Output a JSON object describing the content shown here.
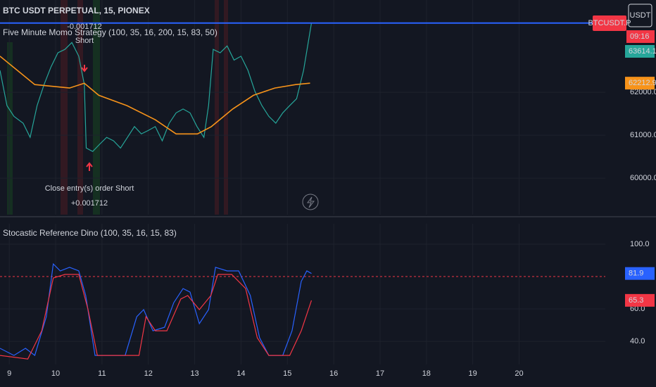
{
  "ui": {
    "symbol_badge": "BTCUSDT.P",
    "currency": "USDT",
    "countdown": "09:16"
  },
  "chart_data": [
    {
      "type": "line",
      "title": "BTC USDT PERPETUAL, 15, PIONEX",
      "subtitle": "Five Minute Momo Strategy (100, 35, 16, 200, 15, 83, 50)",
      "annotations": [
        "-0.001712",
        "Short",
        "Close entry(s) order Short",
        "+0.001712"
      ],
      "xlim": [
        8.8,
        21.86
      ],
      "xticks": [
        9,
        10,
        11,
        12,
        13,
        14,
        15,
        16,
        17,
        18,
        19,
        20
      ],
      "ylim": [
        59150,
        64150
      ],
      "yticks": [
        {
          "value": 60000,
          "label": "60000.0"
        },
        {
          "value": 61000,
          "label": "61000.0"
        },
        {
          "value": 62000,
          "label": "62000.0"
        }
      ],
      "grid": true,
      "series": [
        {
          "color": "#26a69a",
          "x": [
            8.8,
            8.95,
            9.1,
            9.3,
            9.45,
            9.6,
            9.75,
            9.9,
            10.05,
            10.2,
            10.35,
            10.5,
            10.62,
            10.66,
            10.8,
            10.95,
            11.1,
            11.25,
            11.4,
            11.55,
            11.7,
            11.85,
            12.0,
            12.15,
            12.3,
            12.45,
            12.6,
            12.75,
            12.9,
            13.05,
            13.2,
            13.3,
            13.4,
            13.55,
            13.7,
            13.85,
            14.0,
            14.15,
            14.3,
            14.45,
            14.6,
            14.75,
            14.9,
            15.05,
            15.2,
            15.35,
            15.45,
            15.52
          ],
          "values": [
            62510,
            61690,
            61440,
            61280,
            60950,
            61690,
            62180,
            62590,
            62920,
            63000,
            63160,
            62840,
            62180,
            60700,
            60620,
            60790,
            60950,
            60870,
            60700,
            60950,
            61200,
            61030,
            61110,
            61200,
            60870,
            61280,
            61520,
            61610,
            61520,
            61200,
            60950,
            61690,
            63000,
            62920,
            63080,
            62750,
            62840,
            62510,
            62020,
            61690,
            61440,
            61280,
            61520,
            61690,
            61850,
            62510,
            63160,
            63614.1
          ]
        },
        {
          "color": "#f7931a",
          "x": [
            8.8,
            9.55,
            10.3,
            10.62,
            10.93,
            11.54,
            12.15,
            12.6,
            13.06,
            13.36,
            13.82,
            14.27,
            14.73,
            15.18,
            15.49
          ],
          "values": [
            62840,
            62180,
            62100,
            62210,
            61930,
            61690,
            61360,
            61030,
            61030,
            61200,
            61610,
            61930,
            62100,
            62180,
            62212.9
          ]
        }
      ]
    },
    {
      "type": "line",
      "title": "Stocastic Reference Dino (100, 35, 16, 15, 83)",
      "xlim": [
        8.8,
        21.86
      ],
      "xticks": [
        9,
        10,
        11,
        12,
        13,
        14,
        15,
        16,
        17,
        18,
        19,
        20
      ],
      "ylim": [
        25.7,
        112.6
      ],
      "yticks": [
        {
          "value": 40,
          "label": "40.0"
        },
        {
          "value": 60,
          "label": "60.0"
        },
        {
          "value": 100,
          "label": "100.0"
        }
      ],
      "hline": 80,
      "grid": true,
      "series": [
        {
          "color": "#2962ff",
          "x": [
            8.8,
            9.1,
            9.35,
            9.55,
            9.8,
            9.95,
            10.1,
            10.3,
            10.5,
            10.65,
            10.85,
            11.5,
            11.75,
            11.9,
            12.1,
            12.35,
            12.55,
            12.75,
            12.9,
            13.1,
            13.3,
            13.45,
            13.7,
            13.95,
            14.2,
            14.4,
            14.6,
            14.9,
            15.1,
            15.3,
            15.42,
            15.52
          ],
          "values": [
            35.7,
            31.3,
            35.7,
            31.3,
            55.2,
            87.8,
            83.5,
            85.7,
            83.5,
            68.3,
            31.3,
            31.3,
            55.2,
            59.6,
            46.5,
            48.7,
            63.9,
            72.6,
            70.4,
            50.9,
            59.6,
            85.7,
            83.5,
            83.5,
            68.3,
            42.2,
            31.3,
            31.3,
            46.5,
            77.0,
            83.5,
            81.9
          ]
        },
        {
          "color": "#f23645",
          "x": [
            8.8,
            9.4,
            9.7,
            9.95,
            10.2,
            10.5,
            10.7,
            10.9,
            11.8,
            11.95,
            12.15,
            12.4,
            12.7,
            12.85,
            13.1,
            13.35,
            13.5,
            13.8,
            14.1,
            14.35,
            14.6,
            15.05,
            15.3,
            15.52
          ],
          "values": [
            31.3,
            29.1,
            46.5,
            79.1,
            81.3,
            81.3,
            59.6,
            31.3,
            31.3,
            55.2,
            46.5,
            46.5,
            66.1,
            68.3,
            59.6,
            68.3,
            81.3,
            81.3,
            72.6,
            42.2,
            31.3,
            31.3,
            46.5,
            65.3
          ]
        }
      ]
    }
  ]
}
